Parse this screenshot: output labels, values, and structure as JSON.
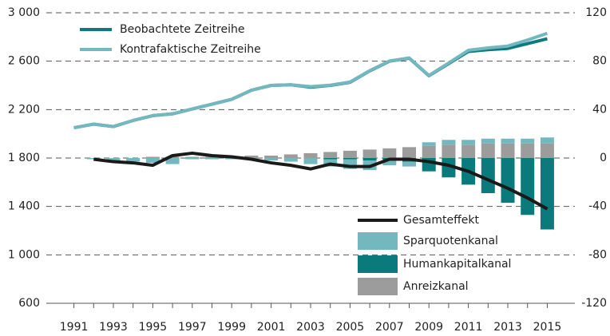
{
  "chart_data": {
    "type": "combo",
    "x": [
      1991,
      1992,
      1993,
      1994,
      1995,
      1996,
      1997,
      1998,
      1999,
      2000,
      2001,
      2002,
      2003,
      2004,
      2005,
      2006,
      2007,
      2008,
      2009,
      2010,
      2011,
      2012,
      2013,
      2014,
      2015
    ],
    "xlim": [
      1989.6,
      2016.4
    ],
    "xticks": [
      1991,
      1993,
      1995,
      1997,
      1999,
      2001,
      2003,
      2005,
      2007,
      2009,
      2011,
      2013,
      2015
    ],
    "ylim": [
      600,
      3000
    ],
    "yticks": [
      600,
      {
        "value": 1000,
        "label": "1 000"
      },
      {
        "value": 1400,
        "label": "1 400"
      },
      {
        "value": 1800,
        "label": "1 800"
      },
      {
        "value": 2200,
        "label": "2 200"
      },
      {
        "value": 2600,
        "label": "2 600"
      },
      {
        "value": 3000,
        "label": "3 000"
      }
    ],
    "y2lim": [
      -120,
      120
    ],
    "y2ticks": [
      -120,
      -80,
      -40,
      0,
      40,
      80,
      120
    ],
    "grid": true,
    "series": [
      {
        "name": "Beobachtete Zeitreihe",
        "type": "line",
        "color": "#0e7a7e",
        "values": [
          2050,
          2080,
          2060,
          2110,
          2150,
          2165,
          2205,
          2245,
          2285,
          2360,
          2400,
          2405,
          2385,
          2400,
          2425,
          2520,
          2600,
          2625,
          2480,
          2580,
          2680,
          2695,
          2705,
          2745,
          2785
        ]
      },
      {
        "name": "Kontrafaktische Zeitreihe",
        "type": "line",
        "color": "#72b8be",
        "values": [
          2050,
          2080,
          2060,
          2110,
          2150,
          2165,
          2205,
          2245,
          2285,
          2360,
          2400,
          2405,
          2390,
          2402,
          2428,
          2522,
          2602,
          2627,
          2482,
          2585,
          2690,
          2710,
          2725,
          2775,
          2830
        ]
      },
      {
        "name": "Gesamteffekt",
        "type": "line",
        "axis": "y2",
        "color": "#1a1a1a",
        "values": [
          null,
          -1,
          -3,
          -4,
          -6,
          2,
          4,
          2,
          1,
          -1,
          -4,
          -6,
          -9,
          -5,
          -7,
          -7,
          -1,
          -1,
          -3,
          -6,
          -11,
          -18,
          -25,
          -33,
          -42
        ]
      },
      {
        "name": "Sparquotenkanal",
        "type": "bar",
        "axis": "y2",
        "color": "#72b8be",
        "values": [
          null,
          -1,
          -2,
          -3,
          -4,
          -5,
          -1,
          -1,
          -1,
          -1,
          -2,
          -3,
          -5,
          -6,
          -8,
          -8,
          -4,
          -4,
          3,
          4,
          4,
          4,
          4,
          4,
          5
        ]
      },
      {
        "name": "Humankapitalkanal",
        "type": "bar",
        "axis": "y2",
        "color": "#0a7a7c",
        "values": [
          null,
          0,
          0,
          0,
          0,
          0,
          0,
          0,
          0,
          0,
          0,
          0,
          0,
          -1,
          -1,
          -2,
          -2,
          -3,
          -11,
          -16,
          -22,
          -29,
          -37,
          -47,
          -59
        ]
      },
      {
        "name": "Anreizkanal",
        "type": "bar",
        "axis": "y2",
        "color": "#9c9c9c",
        "values": [
          null,
          0,
          0,
          0,
          1,
          1,
          1,
          1,
          1,
          2,
          2,
          3,
          4,
          5,
          6,
          7,
          8,
          9,
          10,
          11,
          11,
          12,
          12,
          12,
          12
        ]
      }
    ]
  }
}
